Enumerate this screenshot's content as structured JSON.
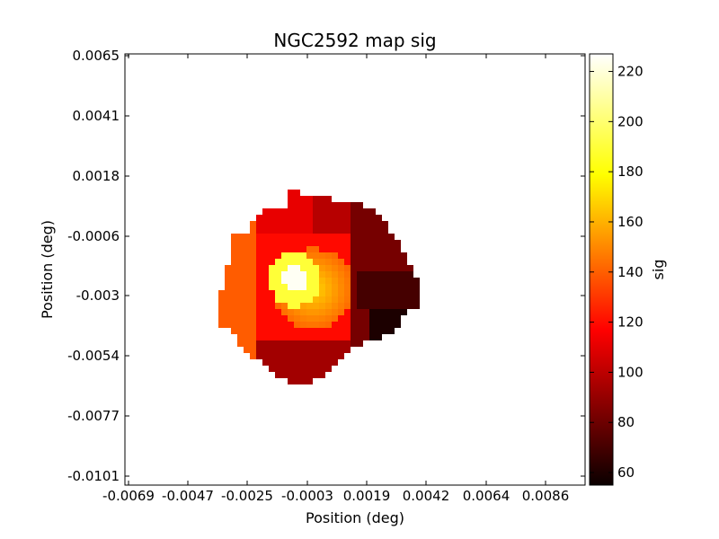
{
  "chart_data": {
    "type": "heatmap",
    "title": "NGC2592 map sig",
    "xlabel": "Position (deg)",
    "ylabel": "Position (deg)",
    "x_ticks": [
      "-0.0069",
      "-0.0047",
      "-0.0025",
      "-0.0003",
      "0.0019",
      "0.0042",
      "0.0064",
      "0.0086"
    ],
    "y_ticks": [
      "0.0065",
      "0.0041",
      "0.0018",
      "-0.0006",
      "-0.003",
      "-0.0054",
      "-0.0077",
      "-0.0101"
    ],
    "colorbar": {
      "label": "sig",
      "ticks": [
        "60",
        "80",
        "100",
        "120",
        "140",
        "160",
        "180",
        "200",
        "220"
      ],
      "min": 55,
      "max": 227,
      "colormap": "hot"
    },
    "grid": false,
    "map_description_regions": [
      {
        "region": "east outer (left)",
        "sig_approx": 140
      },
      {
        "region": "centre-left core",
        "sig_approx": 225
      },
      {
        "region": "central ring",
        "sig_approx": 175
      },
      {
        "region": "north",
        "sig_approx": 110
      },
      {
        "region": "south",
        "sig_approx": 95
      },
      {
        "region": "west (right)",
        "sig_approx": 80
      },
      {
        "region": "south-west patch",
        "sig_approx": 62
      }
    ],
    "colors": {
      "background": "#ffffff",
      "frame": "#000000"
    }
  }
}
